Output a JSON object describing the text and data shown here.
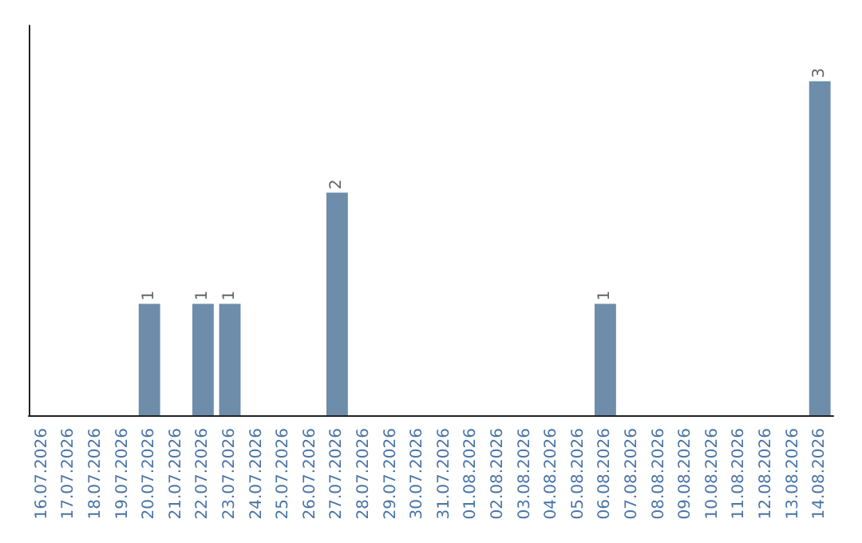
{
  "chart_data": {
    "type": "bar",
    "categories": [
      "16.07.2026",
      "17.07.2026",
      "18.07.2026",
      "19.07.2026",
      "20.07.2026",
      "21.07.2026",
      "22.07.2026",
      "23.07.2026",
      "24.07.2026",
      "25.07.2026",
      "26.07.2026",
      "27.07.2026",
      "28.07.2026",
      "29.07.2026",
      "30.07.2026",
      "31.07.2026",
      "01.08.2026",
      "02.08.2026",
      "03.08.2026",
      "04.08.2026",
      "05.08.2026",
      "06.08.2026",
      "07.08.2026",
      "08.08.2026",
      "09.08.2026",
      "10.08.2026",
      "11.08.2026",
      "12.08.2026",
      "13.08.2026",
      "14.08.2026"
    ],
    "values": [
      null,
      null,
      null,
      null,
      1,
      null,
      1,
      1,
      null,
      null,
      null,
      2,
      null,
      null,
      null,
      null,
      null,
      null,
      null,
      null,
      null,
      1,
      null,
      null,
      null,
      null,
      null,
      null,
      null,
      3
    ],
    "color": "#6d8dab",
    "data_labels": true,
    "grid": false,
    "tick_labels": "x"
  }
}
